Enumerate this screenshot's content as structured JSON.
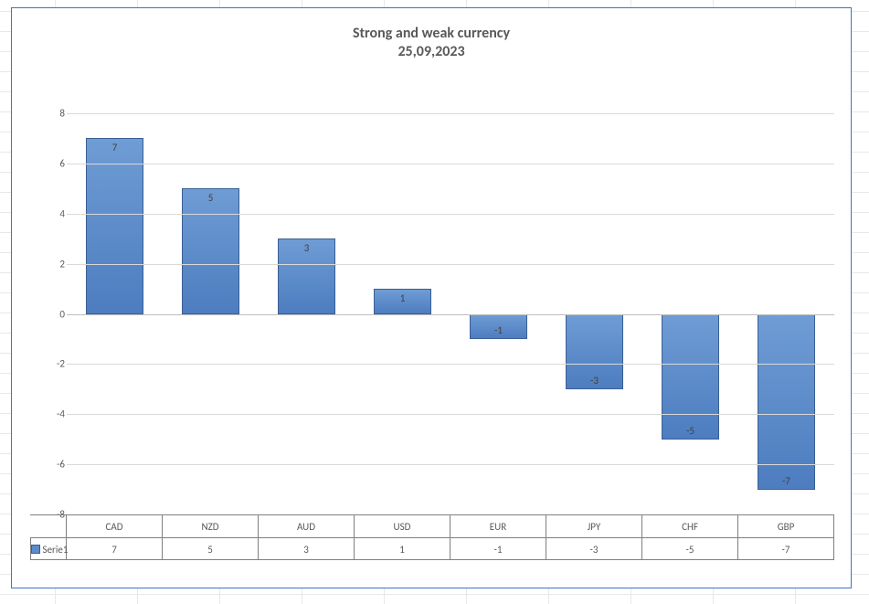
{
  "chart": {
    "type": "bar",
    "title_line1": "Strong and weak currency",
    "title_line2": "25,09,2023",
    "title_fontsize": 16,
    "title_color": "#595959",
    "categories": [
      "CAD",
      "NZD",
      "AUD",
      "USD",
      "EUR",
      "JPY",
      "CHF",
      "GBP"
    ],
    "values": [
      7,
      5,
      3,
      1,
      -1,
      -3,
      -5,
      -7
    ],
    "series_name": "Serie1",
    "bar_fill_top": "#6f9cd4",
    "bar_fill_bottom": "#4d7dc0",
    "bar_border": "#3a5f93",
    "ylim": [
      -8,
      8
    ],
    "ytick_step": 2,
    "grid_color": "#d9d9d9",
    "zero_line_color": "#bfbfbf",
    "axis_label_color": "#595959",
    "data_label_color": "#404040",
    "label_fontsize": 11,
    "bar_width_ratio": 0.6,
    "frame_border_color": "#4472c4",
    "background_color": "#ffffff",
    "table_border_color": "#808080",
    "legend_swatch_color": "#5b8bc9"
  }
}
